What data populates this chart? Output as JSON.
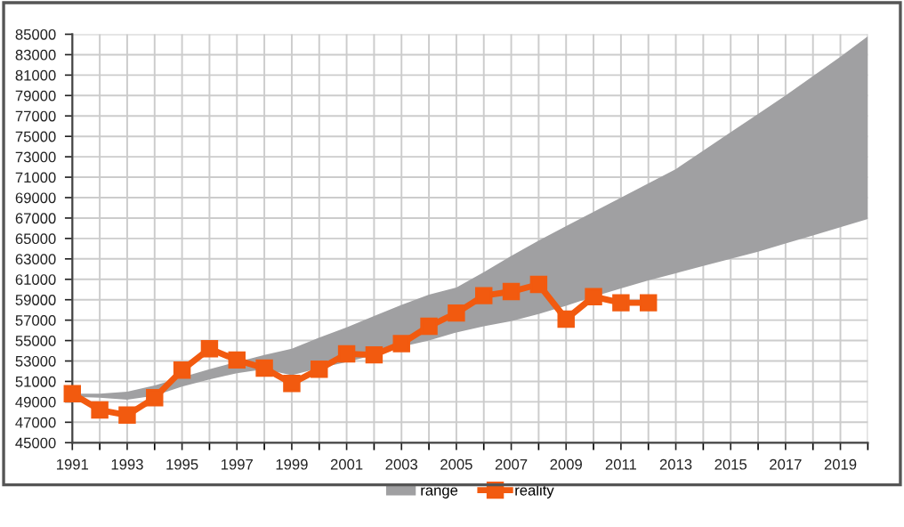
{
  "chart_data": {
    "type": "line",
    "x": [
      1991,
      1992,
      1993,
      1994,
      1995,
      1996,
      1997,
      1998,
      1999,
      2000,
      2001,
      2002,
      2003,
      2004,
      2005,
      2006,
      2007,
      2008,
      2009,
      2010,
      2011,
      2012,
      2013,
      2014,
      2015,
      2016,
      2017,
      2018,
      2019,
      2020
    ],
    "xlim": [
      1991,
      2020
    ],
    "xticks": [
      1991,
      1993,
      1995,
      1997,
      1999,
      2001,
      2003,
      2005,
      2007,
      2009,
      2011,
      2013,
      2015,
      2017,
      2019
    ],
    "series": [
      {
        "name": "range",
        "type": "area",
        "color": "#a0a0a2",
        "values": [
          null,
          null,
          null,
          null,
          null,
          null,
          null,
          null,
          null,
          null,
          null,
          null,
          null,
          null,
          null,
          null,
          null,
          null,
          null,
          null,
          null,
          null,
          null,
          null,
          null,
          null,
          null,
          null,
          null,
          null
        ],
        "lower": [
          49500,
          49400,
          49200,
          49600,
          50500,
          51200,
          51800,
          52200,
          51600,
          52300,
          52900,
          53600,
          54400,
          55000,
          55800,
          56400,
          56900,
          57600,
          58400,
          59300,
          60100,
          60900,
          61600,
          62300,
          63000,
          63700,
          64500,
          65300,
          66100,
          66900
        ],
        "upper": [
          49800,
          49800,
          50000,
          50600,
          51400,
          52200,
          52900,
          53600,
          54200,
          55300,
          56300,
          57400,
          58500,
          59500,
          60200,
          61700,
          63300,
          64800,
          66200,
          67600,
          69000,
          70400,
          71800,
          73600,
          75400,
          77200,
          79000,
          80900,
          82800,
          84800
        ]
      },
      {
        "name": "reality",
        "color": "#f25a0f",
        "marker": "square",
        "line_style": "solid",
        "values": [
          49800,
          48200,
          47700,
          49400,
          52100,
          54200,
          53100,
          52300,
          50800,
          52200,
          53700,
          53600,
          54700,
          56400,
          57700,
          59400,
          59800,
          60500,
          57100,
          59300,
          58700,
          58700,
          null,
          null,
          null,
          null,
          null,
          null,
          null,
          null
        ]
      }
    ],
    "ylim": [
      45000,
      85000
    ],
    "yticks": [
      45000,
      47000,
      49000,
      51000,
      53000,
      55000,
      57000,
      59000,
      61000,
      63000,
      65000,
      67000,
      69000,
      71000,
      73000,
      75000,
      77000,
      79000,
      81000,
      83000,
      85000
    ],
    "grid": true,
    "legend": "bottom"
  }
}
